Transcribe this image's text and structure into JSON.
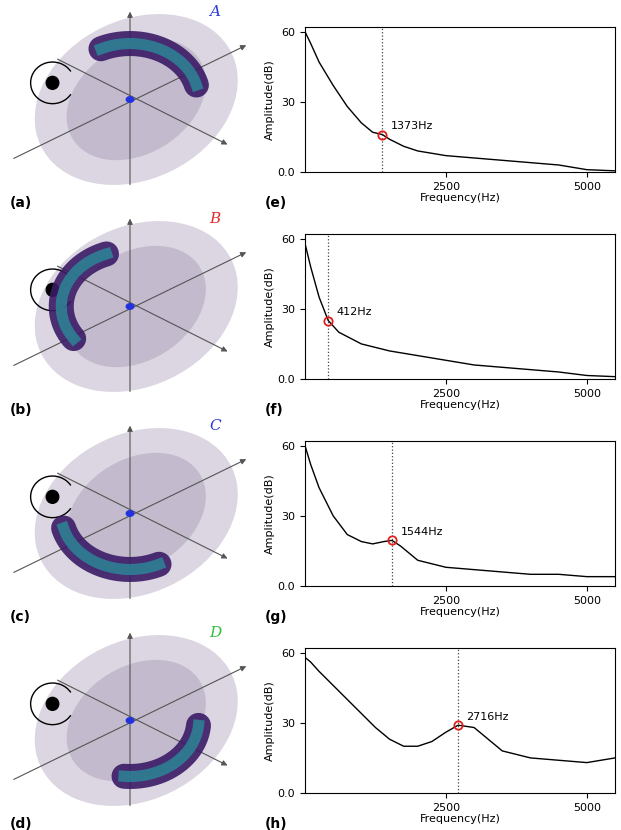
{
  "panels": [
    {
      "label": "(a)",
      "letter": "A",
      "letter_color": "#2a3bd6"
    },
    {
      "label": "(b)",
      "letter": "B",
      "letter_color": "#e0302a"
    },
    {
      "label": "(c)",
      "letter": "C",
      "letter_color": "#2a3bd6"
    },
    {
      "label": "(d)",
      "letter": "D",
      "letter_color": "#2fbf3a"
    }
  ],
  "chart_data": [
    {
      "type": "line",
      "label": "(e)",
      "x_label": "Frequency(Hz)",
      "y_label": "Amplitude(dB)",
      "x": [
        0,
        100,
        250,
        500,
        750,
        1000,
        1200,
        1373,
        1500,
        1750,
        2000,
        2500,
        3000,
        3500,
        4000,
        4500,
        5000,
        5500
      ],
      "values": [
        60,
        55,
        47,
        37,
        28,
        21,
        17,
        16,
        14,
        11,
        9,
        7,
        6,
        5,
        4,
        3,
        1,
        0.5
      ],
      "color": "#000000",
      "peak": {
        "x": 1373,
        "y": 16,
        "label": "1373Hz"
      },
      "xlim": [
        0,
        5500
      ],
      "ylim": [
        0,
        62
      ],
      "xticks": [
        2500,
        5000
      ],
      "yticks": [
        {
          "value": 0,
          "label": "0.0"
        },
        30,
        60
      ]
    },
    {
      "type": "line",
      "label": "(f)",
      "x_label": "Frequency(Hz)",
      "y_label": "Amplitude(dB)",
      "x": [
        0,
        100,
        250,
        412,
        600,
        1000,
        1500,
        2000,
        2500,
        3000,
        3500,
        4000,
        4500,
        5000,
        5500
      ],
      "values": [
        58,
        48,
        35,
        25,
        20,
        15,
        12,
        10,
        8,
        6,
        5,
        4,
        3,
        1.5,
        1
      ],
      "color": "#000000",
      "peak": {
        "x": 412,
        "y": 25,
        "label": "412Hz"
      },
      "xlim": [
        0,
        5500
      ],
      "ylim": [
        0,
        62
      ],
      "xticks": [
        2500,
        5000
      ],
      "yticks": [
        {
          "value": 0,
          "label": "0.0"
        },
        30,
        60
      ]
    },
    {
      "type": "line",
      "label": "(g)",
      "x_label": "Frequency(Hz)",
      "y_label": "Amplitude(dB)",
      "x": [
        0,
        100,
        250,
        500,
        750,
        1000,
        1200,
        1400,
        1544,
        1700,
        2000,
        2500,
        3000,
        3500,
        4000,
        4500,
        5000,
        5500
      ],
      "values": [
        60,
        52,
        42,
        30,
        22,
        19,
        18,
        19,
        19.5,
        17,
        11,
        8,
        7,
        6,
        5,
        5,
        4,
        4
      ],
      "color": "#000000",
      "peak": {
        "x": 1544,
        "y": 19.5,
        "label": "1544Hz"
      },
      "xlim": [
        0,
        5500
      ],
      "ylim": [
        0,
        62
      ],
      "xticks": [
        2500,
        5000
      ],
      "yticks": [
        {
          "value": 0,
          "label": "0.0"
        },
        30,
        60
      ]
    },
    {
      "type": "line",
      "label": "(h)",
      "x_label": "Frequency(Hz)",
      "y_label": "Amplitude(dB)",
      "x": [
        0,
        100,
        250,
        500,
        750,
        1000,
        1250,
        1500,
        1750,
        2000,
        2250,
        2500,
        2716,
        3000,
        3250,
        3500,
        4000,
        4500,
        5000,
        5500
      ],
      "values": [
        58,
        56,
        52,
        46,
        40,
        34,
        28,
        23,
        20,
        20,
        22,
        26,
        29,
        28,
        23,
        18,
        15,
        14,
        13,
        15
      ],
      "color": "#000000",
      "peak": {
        "x": 2716,
        "y": 29,
        "label": "2716Hz"
      },
      "xlim": [
        0,
        5500
      ],
      "ylim": [
        0,
        62
      ],
      "xticks": [
        2500,
        5000
      ],
      "yticks": [
        {
          "value": 0,
          "label": "0.0"
        },
        30,
        60
      ]
    }
  ]
}
